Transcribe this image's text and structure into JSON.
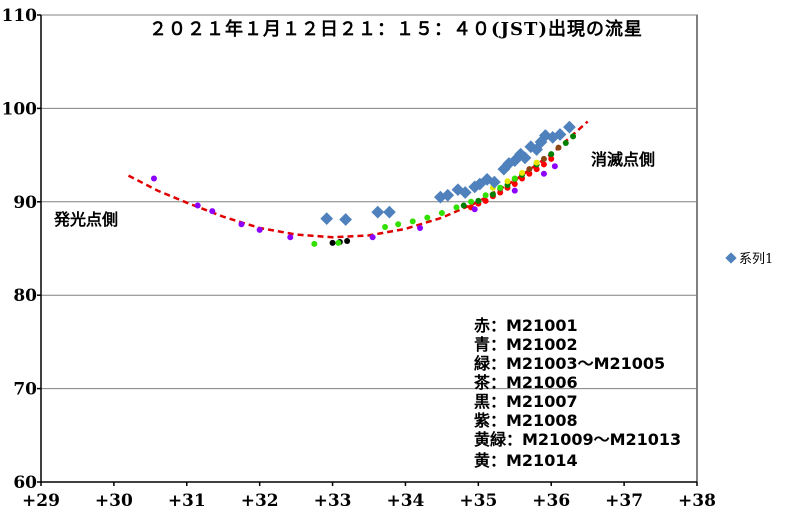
{
  "chart_data": {
    "type": "scatter",
    "title": "２０２１年１月１２日２１：１５：４０(JST)出現の流星",
    "xlabel": "",
    "ylabel": "",
    "xlim": [
      29,
      38
    ],
    "ylim": [
      60,
      110
    ],
    "x_ticks": [
      {
        "value": 29,
        "label": "+29"
      },
      {
        "value": 30,
        "label": "+30"
      },
      {
        "value": 31,
        "label": "+31"
      },
      {
        "value": 32,
        "label": "+32"
      },
      {
        "value": 33,
        "label": "+33"
      },
      {
        "value": 34,
        "label": "+34"
      },
      {
        "value": 35,
        "label": "+35"
      },
      {
        "value": 36,
        "label": "+36"
      },
      {
        "value": 37,
        "label": "+37"
      },
      {
        "value": 38,
        "label": "+38"
      }
    ],
    "y_ticks": [
      {
        "value": 60,
        "label": "60"
      },
      {
        "value": 70,
        "label": "70"
      },
      {
        "value": 80,
        "label": "80"
      },
      {
        "value": 90,
        "label": "90"
      },
      {
        "value": 100,
        "label": "100"
      },
      {
        "value": 110,
        "label": "110"
      }
    ],
    "grid": true,
    "legend": {
      "position": "right",
      "entries": [
        "系列1"
      ]
    },
    "annotations": {
      "start_side": "発光点側",
      "end_side": "消滅点側",
      "station_key": [
        "赤：M21001",
        "青：M21002",
        "緑：M21003～M21005",
        "茶：M21006",
        "黒：M21007",
        "紫：M21008",
        "黄緑：M21009～M21013",
        "黄：M21014"
      ]
    },
    "series": [
      {
        "name": "系列1",
        "marker": "diamond",
        "color": "#4f81bd",
        "points": [
          [
            32.92,
            88.2
          ],
          [
            33.18,
            88.1
          ],
          [
            33.62,
            88.9
          ],
          [
            33.78,
            88.9
          ],
          [
            34.48,
            90.5
          ],
          [
            34.58,
            90.7
          ],
          [
            34.72,
            91.3
          ],
          [
            34.82,
            91.0
          ],
          [
            34.95,
            91.6
          ],
          [
            35.02,
            91.9
          ],
          [
            35.12,
            92.4
          ],
          [
            35.22,
            92.1
          ],
          [
            35.35,
            93.5
          ],
          [
            35.42,
            94.1
          ],
          [
            35.5,
            94.4
          ],
          [
            35.58,
            95.1
          ],
          [
            35.64,
            94.7
          ],
          [
            35.72,
            95.9
          ],
          [
            35.8,
            95.6
          ],
          [
            35.86,
            96.4
          ],
          [
            35.92,
            97.1
          ],
          [
            36.02,
            96.9
          ],
          [
            36.12,
            97.2
          ],
          [
            36.25,
            98.0
          ]
        ]
      },
      {
        "name": "赤",
        "marker": "dot",
        "color": "#ff0000",
        "points": [
          [
            34.9,
            89.4
          ],
          [
            35.0,
            89.8
          ],
          [
            35.1,
            90.1
          ],
          [
            35.2,
            90.6
          ],
          [
            35.3,
            91.0
          ],
          [
            35.4,
            91.5
          ],
          [
            35.5,
            91.9
          ],
          [
            35.6,
            92.5
          ],
          [
            35.7,
            93.0
          ],
          [
            35.8,
            93.5
          ],
          [
            35.9,
            94.0
          ],
          [
            36.0,
            94.6
          ]
        ]
      },
      {
        "name": "紫",
        "marker": "dot",
        "color": "#8b00ff",
        "points": [
          [
            30.55,
            92.5
          ],
          [
            31.15,
            89.6
          ],
          [
            31.35,
            89.0
          ],
          [
            31.75,
            87.6
          ],
          [
            32.0,
            87.0
          ],
          [
            32.42,
            86.2
          ],
          [
            33.55,
            86.2
          ],
          [
            34.2,
            87.2
          ],
          [
            34.95,
            89.2
          ],
          [
            35.5,
            91.2
          ],
          [
            35.9,
            93.0
          ],
          [
            36.05,
            93.8
          ]
        ]
      },
      {
        "name": "緑",
        "marker": "dot",
        "color": "#008000",
        "points": [
          [
            34.8,
            89.6
          ],
          [
            35.0,
            90.1
          ],
          [
            35.2,
            90.8
          ],
          [
            35.4,
            91.8
          ],
          [
            35.6,
            92.9
          ],
          [
            35.8,
            94.0
          ],
          [
            36.0,
            95.1
          ],
          [
            36.2,
            96.3
          ],
          [
            36.3,
            97.0
          ]
        ]
      },
      {
        "name": "茶",
        "marker": "dot",
        "color": "#8b4513",
        "points": [
          [
            35.3,
            91.4
          ],
          [
            35.5,
            92.4
          ],
          [
            35.7,
            93.5
          ],
          [
            35.9,
            94.6
          ],
          [
            36.1,
            95.8
          ]
        ]
      },
      {
        "name": "黒",
        "marker": "dot",
        "color": "#000000",
        "points": [
          [
            33.0,
            85.6
          ],
          [
            33.1,
            85.7
          ],
          [
            33.2,
            85.8
          ]
        ]
      },
      {
        "name": "黄緑",
        "marker": "dot",
        "color": "#32e000",
        "points": [
          [
            32.75,
            85.5
          ],
          [
            33.08,
            85.6
          ],
          [
            33.72,
            87.3
          ],
          [
            33.9,
            87.6
          ],
          [
            34.1,
            87.9
          ],
          [
            34.3,
            88.3
          ],
          [
            34.5,
            88.8
          ],
          [
            34.7,
            89.4
          ],
          [
            34.9,
            90.0
          ],
          [
            35.1,
            90.7
          ],
          [
            35.3,
            91.5
          ],
          [
            35.5,
            92.5
          ]
        ]
      },
      {
        "name": "黄",
        "marker": "dot",
        "color": "#e6e600",
        "points": [
          [
            35.2,
            91.5
          ],
          [
            35.4,
            92.2
          ],
          [
            35.6,
            93.1
          ],
          [
            35.8,
            94.2
          ]
        ]
      }
    ],
    "fit_curve": {
      "style": "dashed",
      "color": "#e00000",
      "points": [
        [
          30.2,
          92.8
        ],
        [
          30.6,
          91.2
        ],
        [
          31.0,
          89.9
        ],
        [
          31.5,
          88.4
        ],
        [
          32.0,
          87.2
        ],
        [
          32.5,
          86.5
        ],
        [
          33.0,
          86.2
        ],
        [
          33.5,
          86.4
        ],
        [
          34.0,
          87.1
        ],
        [
          34.5,
          88.3
        ],
        [
          35.0,
          90.0
        ],
        [
          35.5,
          92.3
        ],
        [
          36.0,
          95.1
        ],
        [
          36.5,
          98.6
        ]
      ]
    }
  }
}
